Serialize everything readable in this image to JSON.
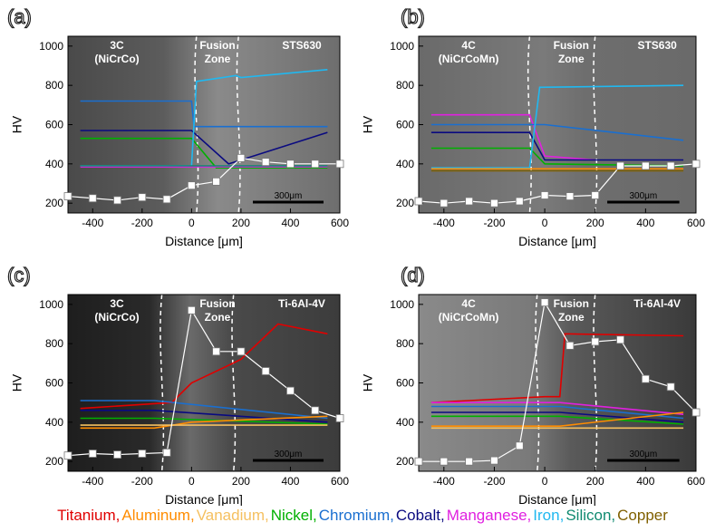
{
  "figure": {
    "legend_title": "",
    "legend": [
      {
        "name": "Titanium",
        "color": "#e00000"
      },
      {
        "name": "Aluminum",
        "color": "#ff8c00"
      },
      {
        "name": "Vanadium",
        "color": "#f5c060"
      },
      {
        "name": "Nickel",
        "color": "#00b000"
      },
      {
        "name": "Chromium",
        "color": "#1a6fd0"
      },
      {
        "name": "Cobalt",
        "color": "#0a0a80"
      },
      {
        "name": "Manganese",
        "color": "#e020e0"
      },
      {
        "name": "Iron",
        "color": "#20b8f0"
      },
      {
        "name": "Silicon",
        "color": "#108a70"
      },
      {
        "name": "Copper",
        "color": "#806000"
      }
    ]
  },
  "chart_data": [
    {
      "panel": "(a)",
      "type": "line",
      "xlabel": "Distance [μm]",
      "ylabel": "HV",
      "xlim": [
        -500,
        600
      ],
      "ylim": [
        150,
        1050
      ],
      "xticks": [
        -400,
        -200,
        0,
        200,
        400,
        600
      ],
      "yticks": [
        200,
        400,
        600,
        800,
        1000
      ],
      "annotations": {
        "left": "3C\n(NiCrCo)",
        "fusion": "Fusion\nZone",
        "right": "STS630",
        "scale": "300μm"
      },
      "fusion_boundaries": [
        20,
        190
      ],
      "hardness": {
        "x": [
          -500,
          -400,
          -300,
          -200,
          -100,
          0,
          100,
          200,
          300,
          400,
          500,
          600
        ],
        "y": [
          235,
          225,
          215,
          230,
          220,
          290,
          310,
          430,
          410,
          400,
          400,
          400
        ]
      },
      "series": [
        {
          "name": "Chromium",
          "color": "#1a6fd0",
          "x": [
            -450,
            0,
            10,
            200,
            550
          ],
          "y": [
            720,
            720,
            590,
            590,
            590
          ]
        },
        {
          "name": "Cobalt",
          "color": "#0a0a80",
          "x": [
            -450,
            0,
            150,
            550
          ],
          "y": [
            570,
            570,
            400,
            560
          ]
        },
        {
          "name": "Nickel",
          "color": "#00b000",
          "x": [
            -450,
            0,
            100,
            550
          ],
          "y": [
            530,
            530,
            380,
            380
          ]
        },
        {
          "name": "Iron",
          "color": "#20b8f0",
          "x": [
            -450,
            0,
            20,
            180,
            200,
            550
          ],
          "y": [
            390,
            390,
            820,
            850,
            840,
            880
          ]
        },
        {
          "name": "Manganese",
          "color": "#e020e0",
          "x": [
            -450,
            550
          ],
          "y": [
            385,
            385
          ]
        },
        {
          "name": "Silicon",
          "color": "#108a70",
          "x": [
            -450,
            550
          ],
          "y": [
            390,
            390
          ]
        }
      ]
    },
    {
      "panel": "(b)",
      "type": "line",
      "xlabel": "Distance [μm]",
      "ylabel": "HV",
      "xlim": [
        -500,
        600
      ],
      "ylim": [
        150,
        1050
      ],
      "xticks": [
        -400,
        -200,
        0,
        200,
        400,
        600
      ],
      "yticks": [
        200,
        400,
        600,
        800,
        1000
      ],
      "annotations": {
        "left": "4C\n(NiCrCoMn)",
        "fusion": "Fusion\nZone",
        "right": "STS630",
        "scale": "300μm"
      },
      "fusion_boundaries": [
        -60,
        200
      ],
      "hardness": {
        "x": [
          -500,
          -400,
          -300,
          -200,
          -100,
          0,
          100,
          200,
          300,
          400,
          500,
          600
        ],
        "y": [
          210,
          200,
          210,
          200,
          210,
          240,
          235,
          240,
          390,
          390,
          390,
          400
        ]
      },
      "series": [
        {
          "name": "Manganese",
          "color": "#e020e0",
          "x": [
            -450,
            -60,
            0,
            200
          ],
          "y": [
            650,
            650,
            440,
            420
          ]
        },
        {
          "name": "Chromium",
          "color": "#1a6fd0",
          "x": [
            -450,
            -60,
            0,
            550
          ],
          "y": [
            600,
            600,
            600,
            520
          ]
        },
        {
          "name": "Cobalt",
          "color": "#0a0a80",
          "x": [
            -450,
            -60,
            0,
            550
          ],
          "y": [
            560,
            560,
            420,
            420
          ]
        },
        {
          "name": "Nickel",
          "color": "#00b000",
          "x": [
            -450,
            -60,
            0,
            550
          ],
          "y": [
            480,
            480,
            400,
            390
          ]
        },
        {
          "name": "Iron",
          "color": "#20b8f0",
          "x": [
            -450,
            -60,
            -20,
            550
          ],
          "y": [
            380,
            380,
            790,
            800
          ]
        },
        {
          "name": "Aluminum",
          "color": "#ff8c00",
          "x": [
            -450,
            550
          ],
          "y": [
            375,
            375
          ]
        },
        {
          "name": "Copper",
          "color": "#806000",
          "x": [
            -450,
            550
          ],
          "y": [
            365,
            365
          ]
        }
      ]
    },
    {
      "panel": "(c)",
      "type": "line",
      "xlabel": "Distance [μm]",
      "ylabel": "HV",
      "xlim": [
        -500,
        600
      ],
      "ylim": [
        150,
        1050
      ],
      "xticks": [
        -400,
        -200,
        0,
        200,
        400,
        600
      ],
      "yticks": [
        200,
        400,
        600,
        800,
        1000
      ],
      "annotations": {
        "left": "3C\n(NiCrCo)",
        "fusion": "Fusion\nZone",
        "right": "Ti-6Al-4V",
        "scale": "300μm"
      },
      "fusion_boundaries": [
        -120,
        170
      ],
      "hardness": {
        "x": [
          -500,
          -400,
          -300,
          -200,
          -100,
          0,
          100,
          200,
          300,
          400,
          500,
          600
        ],
        "y": [
          230,
          240,
          235,
          240,
          245,
          970,
          760,
          760,
          660,
          560,
          460,
          420
        ]
      },
      "series": [
        {
          "name": "Titanium",
          "color": "#e00000",
          "x": [
            -450,
            -80,
            0,
            200,
            350,
            550
          ],
          "y": [
            470,
            500,
            600,
            720,
            900,
            850
          ]
        },
        {
          "name": "Chromium",
          "color": "#1a6fd0",
          "x": [
            -450,
            -150,
            550
          ],
          "y": [
            510,
            510,
            420
          ]
        },
        {
          "name": "Cobalt",
          "color": "#0a0a80",
          "x": [
            -450,
            -150,
            550
          ],
          "y": [
            460,
            460,
            400
          ]
        },
        {
          "name": "Nickel",
          "color": "#00b000",
          "x": [
            -450,
            -150,
            550
          ],
          "y": [
            420,
            420,
            390
          ]
        },
        {
          "name": "Aluminum",
          "color": "#ff8c00",
          "x": [
            -450,
            -150,
            0,
            550
          ],
          "y": [
            370,
            370,
            400,
            430
          ]
        },
        {
          "name": "Vanadium",
          "color": "#f5c060",
          "x": [
            -450,
            550
          ],
          "y": [
            385,
            385
          ]
        }
      ]
    },
    {
      "panel": "(d)",
      "type": "line",
      "xlabel": "Distance [μm]",
      "ylabel": "HV",
      "xlim": [
        -500,
        600
      ],
      "ylim": [
        150,
        1050
      ],
      "xticks": [
        -400,
        -200,
        0,
        200,
        400,
        600
      ],
      "yticks": [
        200,
        400,
        600,
        800,
        1000
      ],
      "annotations": {
        "left": "4C\n(NiCrCoMn)",
        "fusion": "Fusion\nZone",
        "right": "Ti-6Al-4V",
        "scale": "300μm"
      },
      "fusion_boundaries": [
        -30,
        200
      ],
      "hardness": {
        "x": [
          -500,
          -400,
          -300,
          -200,
          -100,
          0,
          100,
          200,
          300,
          400,
          500,
          600
        ],
        "y": [
          200,
          200,
          200,
          205,
          280,
          1010,
          790,
          810,
          820,
          620,
          580,
          450
        ]
      },
      "series": [
        {
          "name": "Titanium",
          "color": "#e00000",
          "x": [
            -450,
            0,
            60,
            80,
            550
          ],
          "y": [
            500,
            530,
            530,
            850,
            840
          ]
        },
        {
          "name": "Manganese",
          "color": "#e020e0",
          "x": [
            -450,
            60,
            550
          ],
          "y": [
            500,
            500,
            440
          ]
        },
        {
          "name": "Chromium",
          "color": "#1a6fd0",
          "x": [
            -450,
            60,
            550
          ],
          "y": [
            480,
            480,
            420
          ]
        },
        {
          "name": "Cobalt",
          "color": "#0a0a80",
          "x": [
            -450,
            60,
            550
          ],
          "y": [
            450,
            450,
            400
          ]
        },
        {
          "name": "Nickel",
          "color": "#00b000",
          "x": [
            -450,
            60,
            550
          ],
          "y": [
            430,
            430,
            390
          ]
        },
        {
          "name": "Aluminum",
          "color": "#ff8c00",
          "x": [
            -450,
            60,
            550
          ],
          "y": [
            380,
            380,
            450
          ]
        },
        {
          "name": "Vanadium",
          "color": "#f5c060",
          "x": [
            -450,
            550
          ],
          "y": [
            370,
            370
          ]
        }
      ]
    }
  ]
}
